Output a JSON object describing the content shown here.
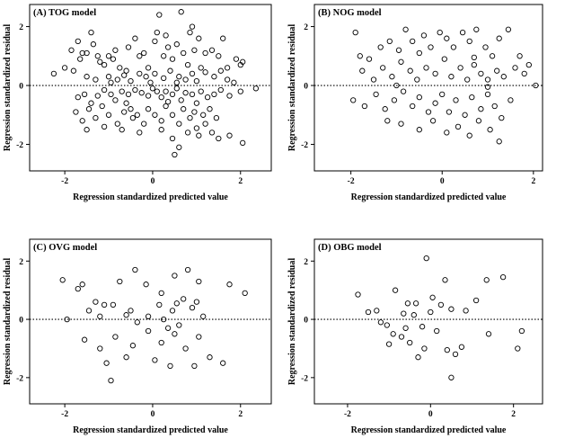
{
  "chart_data": [
    {
      "type": "scatter",
      "title": "(A) TOG model",
      "xlabel": "Regression standardized predicted value",
      "ylabel": "Regression standardized residual",
      "xlim": [
        -2.8,
        2.7
      ],
      "ylim": [
        -2.9,
        2.75
      ],
      "xticks": [
        -2,
        0,
        2
      ],
      "yticks": [
        -2,
        0,
        2
      ],
      "reference_line": {
        "y": 0,
        "style": "dotted"
      },
      "points": [
        [
          -2.25,
          0.4
        ],
        [
          -2.0,
          0.6
        ],
        [
          -1.85,
          1.2
        ],
        [
          -1.7,
          1.5
        ],
        [
          -1.65,
          0.9
        ],
        [
          -1.6,
          1.1
        ],
        [
          -1.5,
          1.1
        ],
        [
          -1.4,
          1.8
        ],
        [
          -1.35,
          1.4
        ],
        [
          -1.25,
          1.0
        ],
        [
          -1.2,
          0.8
        ],
        [
          -1.1,
          0.7
        ],
        [
          -1.0,
          1.0
        ],
        [
          -0.9,
          0.9
        ],
        [
          -0.85,
          1.2
        ],
        [
          -0.75,
          0.6
        ],
        [
          -0.6,
          0.5
        ],
        [
          -0.55,
          1.3
        ],
        [
          -0.4,
          1.6
        ],
        [
          -0.3,
          1.0
        ],
        [
          -0.2,
          1.1
        ],
        [
          -0.1,
          0.6
        ],
        [
          0.05,
          1.5
        ],
        [
          0.1,
          1.8
        ],
        [
          0.15,
          2.4
        ],
        [
          0.25,
          1.0
        ],
        [
          0.3,
          1.7
        ],
        [
          0.35,
          1.3
        ],
        [
          0.45,
          0.9
        ],
        [
          0.55,
          1.4
        ],
        [
          0.65,
          2.5
        ],
        [
          0.7,
          1.1
        ],
        [
          0.8,
          0.7
        ],
        [
          0.85,
          1.8
        ],
        [
          0.9,
          2.0
        ],
        [
          0.95,
          1.2
        ],
        [
          1.05,
          1.6
        ],
        [
          1.1,
          0.6
        ],
        [
          1.2,
          1.1
        ],
        [
          1.35,
          1.2
        ],
        [
          1.5,
          1.0
        ],
        [
          1.6,
          1.6
        ],
        [
          1.7,
          0.6
        ],
        [
          1.9,
          0.9
        ],
        [
          2.0,
          0.7
        ],
        [
          2.05,
          0.8
        ],
        [
          -1.8,
          0.5
        ],
        [
          -1.5,
          0.3
        ],
        [
          -1.3,
          0.2
        ],
        [
          -1.0,
          0.3
        ],
        [
          -0.95,
          0.1
        ],
        [
          -0.8,
          0.2
        ],
        [
          -0.65,
          0.35
        ],
        [
          -0.5,
          0.15
        ],
        [
          -0.3,
          0.4
        ],
        [
          -0.15,
          0.3
        ],
        [
          -0.05,
          0.1
        ],
        [
          0.05,
          0.4
        ],
        [
          0.25,
          0.25
        ],
        [
          0.4,
          0.5
        ],
        [
          0.55,
          0.1
        ],
        [
          0.6,
          0.3
        ],
        [
          0.75,
          0.2
        ],
        [
          0.9,
          0.4
        ],
        [
          1.0,
          0.15
        ],
        [
          1.2,
          0.45
        ],
        [
          1.4,
          0.3
        ],
        [
          1.55,
          0.5
        ],
        [
          1.7,
          0.2
        ],
        [
          1.85,
          0.1
        ],
        [
          -1.7,
          -0.4
        ],
        [
          -1.55,
          -0.3
        ],
        [
          -1.4,
          -0.6
        ],
        [
          -1.25,
          -0.35
        ],
        [
          -1.1,
          -0.15
        ],
        [
          -0.95,
          -0.3
        ],
        [
          -0.85,
          -0.5
        ],
        [
          -0.7,
          -0.2
        ],
        [
          -0.55,
          -0.3
        ],
        [
          -0.4,
          -0.15
        ],
        [
          -0.25,
          -0.25
        ],
        [
          -0.1,
          -0.35
        ],
        [
          0.0,
          -0.1
        ],
        [
          0.1,
          -0.2
        ],
        [
          0.2,
          -0.4
        ],
        [
          0.3,
          -0.2
        ],
        [
          0.45,
          -0.3
        ],
        [
          0.55,
          -0.1
        ],
        [
          0.65,
          -0.5
        ],
        [
          0.75,
          -0.25
        ],
        [
          0.9,
          -0.3
        ],
        [
          1.0,
          -0.6
        ],
        [
          1.1,
          -0.2
        ],
        [
          1.25,
          -0.4
        ],
        [
          1.4,
          -0.3
        ],
        [
          1.55,
          -0.15
        ],
        [
          1.75,
          -0.35
        ],
        [
          2.0,
          -0.2
        ],
        [
          2.35,
          -0.1
        ],
        [
          -1.75,
          -0.9
        ],
        [
          -1.6,
          -1.2
        ],
        [
          -1.45,
          -0.8
        ],
        [
          -1.3,
          -1.1
        ],
        [
          -1.15,
          -0.7
        ],
        [
          -1.0,
          -1.0
        ],
        [
          -0.8,
          -1.3
        ],
        [
          -0.65,
          -0.9
        ],
        [
          -0.5,
          -0.8
        ],
        [
          -0.35,
          -1.0
        ],
        [
          -0.2,
          -1.3
        ],
        [
          -0.1,
          -0.8
        ],
        [
          0.05,
          -1.0
        ],
        [
          0.2,
          -1.2
        ],
        [
          0.3,
          -0.7
        ],
        [
          0.45,
          -1.0
        ],
        [
          0.6,
          -1.3
        ],
        [
          0.7,
          -0.8
        ],
        [
          0.85,
          -1.1
        ],
        [
          0.95,
          -0.9
        ],
        [
          1.15,
          -1.0
        ],
        [
          1.3,
          -0.8
        ],
        [
          1.45,
          -1.1
        ],
        [
          -1.5,
          -1.5
        ],
        [
          -1.1,
          -1.4
        ],
        [
          -0.7,
          -1.5
        ],
        [
          -0.3,
          -1.6
        ],
        [
          0.2,
          -1.5
        ],
        [
          0.45,
          -1.8
        ],
        [
          0.6,
          -2.1
        ],
        [
          0.8,
          -1.6
        ],
        [
          1.05,
          -1.7
        ],
        [
          1.2,
          -1.3
        ],
        [
          1.35,
          -1.6
        ],
        [
          1.5,
          -1.8
        ],
        [
          1.75,
          -1.7
        ],
        [
          2.05,
          -1.95
        ],
        [
          0.5,
          -2.35
        ],
        [
          -0.6,
          -0.6
        ],
        [
          -0.45,
          -1.1
        ],
        [
          0.35,
          -0.55
        ],
        [
          1.0,
          -1.45
        ]
      ]
    },
    {
      "type": "scatter",
      "title": "(B) NOG model",
      "xlabel": "Regression standardized predicted value",
      "ylabel": "Regression standardized residual",
      "xlim": [
        -2.8,
        2.2
      ],
      "ylim": [
        -2.9,
        2.75
      ],
      "xticks": [
        -2,
        0,
        2
      ],
      "yticks": [
        -2,
        0,
        2
      ],
      "reference_line": {
        "y": 0,
        "style": "dotted"
      },
      "points": [
        [
          -1.9,
          1.8
        ],
        [
          -1.6,
          0.9
        ],
        [
          -1.35,
          1.3
        ],
        [
          -1.15,
          1.5
        ],
        [
          -0.95,
          1.2
        ],
        [
          -0.8,
          1.9
        ],
        [
          -0.65,
          1.5
        ],
        [
          -0.5,
          1.1
        ],
        [
          -0.4,
          1.7
        ],
        [
          -0.25,
          1.3
        ],
        [
          -0.05,
          1.8
        ],
        [
          0.1,
          1.6
        ],
        [
          0.25,
          1.3
        ],
        [
          0.45,
          1.8
        ],
        [
          0.6,
          1.5
        ],
        [
          0.75,
          1.9
        ],
        [
          0.95,
          1.3
        ],
        [
          1.1,
          1.0
        ],
        [
          1.25,
          1.6
        ],
        [
          1.45,
          1.9
        ],
        [
          1.7,
          1.0
        ],
        [
          1.9,
          0.7
        ],
        [
          -1.75,
          0.5
        ],
        [
          -1.5,
          0.2
        ],
        [
          -1.3,
          0.6
        ],
        [
          -1.1,
          0.3
        ],
        [
          -0.9,
          0.8
        ],
        [
          -0.7,
          0.5
        ],
        [
          -0.55,
          0.2
        ],
        [
          -0.35,
          0.6
        ],
        [
          -0.15,
          0.4
        ],
        [
          0.05,
          0.9
        ],
        [
          0.2,
          0.3
        ],
        [
          0.4,
          0.6
        ],
        [
          0.55,
          0.2
        ],
        [
          0.7,
          0.7
        ],
        [
          0.85,
          0.4
        ],
        [
          1.0,
          0.2
        ],
        [
          1.2,
          0.5
        ],
        [
          1.35,
          0.3
        ],
        [
          1.6,
          0.6
        ],
        [
          1.8,
          0.4
        ],
        [
          -1.95,
          -0.5
        ],
        [
          -1.7,
          -0.7
        ],
        [
          -1.45,
          -0.3
        ],
        [
          -1.25,
          -0.8
        ],
        [
          -1.05,
          -0.5
        ],
        [
          -0.85,
          -0.2
        ],
        [
          -0.65,
          -0.7
        ],
        [
          -0.5,
          -0.4
        ],
        [
          -0.3,
          -0.9
        ],
        [
          -0.15,
          -0.6
        ],
        [
          0.0,
          -0.3
        ],
        [
          0.15,
          -0.9
        ],
        [
          0.3,
          -0.5
        ],
        [
          0.5,
          -1.0
        ],
        [
          0.65,
          -0.4
        ],
        [
          0.85,
          -0.8
        ],
        [
          1.0,
          -0.3
        ],
        [
          1.15,
          -0.7
        ],
        [
          1.3,
          -1.1
        ],
        [
          1.5,
          -0.5
        ],
        [
          -1.2,
          -1.2
        ],
        [
          -0.9,
          -1.3
        ],
        [
          -0.5,
          -1.5
        ],
        [
          -0.2,
          -1.2
        ],
        [
          0.1,
          -1.6
        ],
        [
          0.35,
          -1.4
        ],
        [
          0.6,
          -1.7
        ],
        [
          0.8,
          -1.2
        ],
        [
          1.05,
          -1.5
        ],
        [
          1.25,
          -1.9
        ],
        [
          -1.8,
          1.0
        ],
        [
          0.7,
          0.95
        ],
        [
          2.05,
          0.0
        ],
        [
          -1.0,
          0.0
        ],
        [
          1.0,
          -0.05
        ]
      ]
    },
    {
      "type": "scatter",
      "title": "(C) OVG model",
      "xlabel": "Regression standardized predicted value",
      "ylabel": "Regression standardized residual",
      "xlim": [
        -2.8,
        2.7
      ],
      "ylim": [
        -2.9,
        2.75
      ],
      "xticks": [
        -2,
        0,
        2
      ],
      "yticks": [
        -2,
        0,
        2
      ],
      "reference_line": {
        "y": 0,
        "style": "dotted"
      },
      "points": [
        [
          -2.05,
          1.35
        ],
        [
          -1.7,
          1.05
        ],
        [
          -1.6,
          1.2
        ],
        [
          -1.3,
          0.6
        ],
        [
          -1.1,
          0.5
        ],
        [
          -0.75,
          1.3
        ],
        [
          -0.4,
          1.7
        ],
        [
          -0.15,
          1.2
        ],
        [
          0.2,
          0.9
        ],
        [
          0.5,
          1.5
        ],
        [
          0.8,
          1.7
        ],
        [
          1.05,
          1.3
        ],
        [
          1.75,
          1.2
        ],
        [
          2.1,
          0.9
        ],
        [
          -1.95,
          0.0
        ],
        [
          -1.45,
          0.3
        ],
        [
          -1.2,
          0.1
        ],
        [
          -0.9,
          0.5
        ],
        [
          -0.5,
          0.3
        ],
        [
          -0.1,
          0.1
        ],
        [
          0.15,
          0.5
        ],
        [
          0.45,
          0.3
        ],
        [
          0.7,
          0.7
        ],
        [
          0.9,
          0.4
        ],
        [
          1.15,
          0.1
        ],
        [
          -1.55,
          -0.7
        ],
        [
          -1.2,
          -1.0
        ],
        [
          -0.85,
          -0.6
        ],
        [
          -0.45,
          -0.9
        ],
        [
          -0.1,
          -0.4
        ],
        [
          0.2,
          -0.8
        ],
        [
          0.5,
          -0.5
        ],
        [
          0.75,
          -1.0
        ],
        [
          1.05,
          -0.6
        ],
        [
          1.3,
          -1.3
        ],
        [
          -1.05,
          -1.5
        ],
        [
          -0.6,
          -1.3
        ],
        [
          0.05,
          -1.4
        ],
        [
          0.4,
          -1.6
        ],
        [
          0.95,
          -1.6
        ],
        [
          1.6,
          -1.5
        ],
        [
          -0.95,
          -2.1
        ],
        [
          0.25,
          0.0
        ],
        [
          -0.35,
          -0.1
        ],
        [
          0.6,
          -0.2
        ],
        [
          -0.6,
          0.15
        ],
        [
          1.0,
          0.6
        ],
        [
          0.35,
          -0.3
        ],
        [
          0.55,
          0.55
        ]
      ]
    },
    {
      "type": "scatter",
      "title": "(D) OBG model",
      "xlabel": "Regression standardized predicted value",
      "ylabel": "Regression standardized residual",
      "xlim": [
        -2.8,
        2.7
      ],
      "ylim": [
        -2.9,
        2.75
      ],
      "xticks": [
        -2,
        0,
        2
      ],
      "yticks": [
        -2,
        0,
        2
      ],
      "reference_line": {
        "y": 0,
        "style": "dotted"
      },
      "points": [
        [
          -1.75,
          0.85
        ],
        [
          -1.5,
          0.25
        ],
        [
          -0.85,
          1.0
        ],
        [
          -0.55,
          0.55
        ],
        [
          -0.1,
          2.1
        ],
        [
          0.35,
          1.35
        ],
        [
          0.05,
          0.75
        ],
        [
          1.35,
          1.35
        ],
        [
          1.75,
          1.45
        ],
        [
          -1.2,
          -0.1
        ],
        [
          -0.9,
          -0.5
        ],
        [
          -0.6,
          -0.3
        ],
        [
          -0.4,
          0.15
        ],
        [
          -0.2,
          -0.25
        ],
        [
          0.0,
          0.25
        ],
        [
          0.25,
          0.5
        ],
        [
          0.5,
          0.35
        ],
        [
          1.1,
          0.65
        ],
        [
          -1.0,
          -0.85
        ],
        [
          -0.7,
          -0.6
        ],
        [
          -0.5,
          -0.8
        ],
        [
          -0.15,
          -1.0
        ],
        [
          0.15,
          -0.4
        ],
        [
          0.4,
          -1.05
        ],
        [
          0.75,
          -0.95
        ],
        [
          1.4,
          -0.5
        ],
        [
          2.2,
          -0.4
        ],
        [
          2.1,
          -1.0
        ],
        [
          -0.3,
          -1.3
        ],
        [
          0.6,
          -1.2
        ],
        [
          0.5,
          -2.0
        ],
        [
          -0.35,
          0.55
        ],
        [
          -0.65,
          0.2
        ],
        [
          -1.3,
          0.3
        ],
        [
          0.85,
          0.3
        ],
        [
          -1.05,
          -0.2
        ]
      ]
    }
  ]
}
